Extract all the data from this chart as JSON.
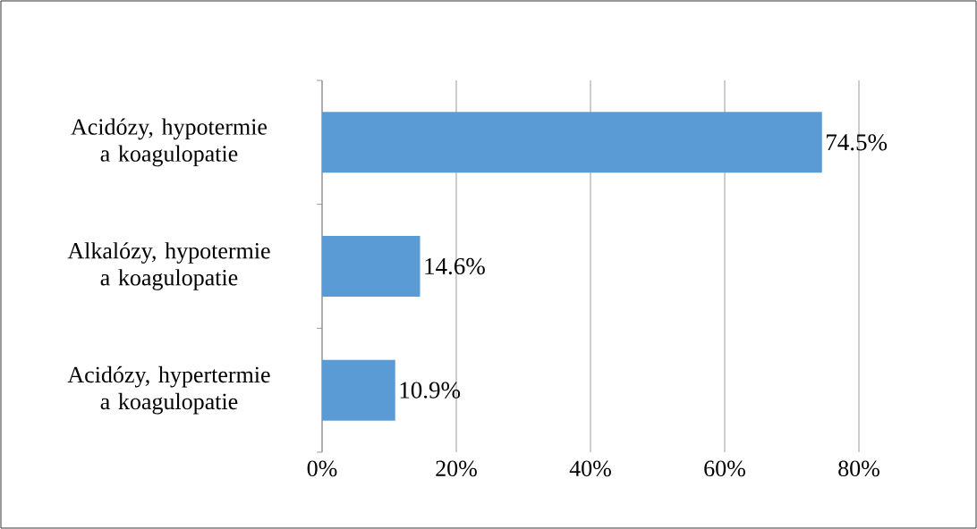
{
  "chart_data": {
    "type": "bar",
    "orientation": "horizontal",
    "categories": [
      "Acidózy, hypotermie a koagulopatie",
      "Alkalózy, hypotermie a koagulopatie",
      "Acidózy, hypertermie a koagulopatie"
    ],
    "values": [
      74.5,
      14.6,
      10.9
    ],
    "value_labels": [
      "74.5%",
      "14.6%",
      "10.9%"
    ],
    "color": "#5b9bd5",
    "xlim": [
      0,
      80
    ],
    "xticks": [
      {
        "value": 0,
        "label": "0%"
      },
      {
        "value": 20,
        "label": "20%"
      },
      {
        "value": 40,
        "label": "40%"
      },
      {
        "value": 60,
        "label": "60%"
      },
      {
        "value": 80,
        "label": "80%"
      }
    ],
    "grid": "x"
  }
}
